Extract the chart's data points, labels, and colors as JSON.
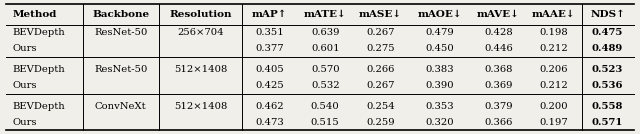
{
  "headers": [
    "Method",
    "Backbone",
    "Resolution",
    "mAP↑",
    "mATE↓",
    "mASE↓",
    "mAOE↓",
    "mAVE↓",
    "mAAE↓",
    "NDS↑"
  ],
  "rows": [
    [
      "BEVDepth",
      "ResNet-50",
      "256×704",
      "0.351",
      "0.639",
      "0.267",
      "0.479",
      "0.428",
      "0.198",
      "0.475"
    ],
    [
      "Ours",
      "",
      "",
      "0.377",
      "0.601",
      "0.275",
      "0.450",
      "0.446",
      "0.212",
      "0.489"
    ],
    [
      "BEVDepth",
      "ResNet-50",
      "512×1408",
      "0.405",
      "0.570",
      "0.266",
      "0.383",
      "0.368",
      "0.206",
      "0.523"
    ],
    [
      "Ours",
      "",
      "",
      "0.425",
      "0.532",
      "0.267",
      "0.390",
      "0.369",
      "0.212",
      "0.536"
    ],
    [
      "BEVDepth",
      "ConvNeXt",
      "512×1408",
      "0.462",
      "0.540",
      "0.254",
      "0.353",
      "0.379",
      "0.200",
      "0.558"
    ],
    [
      "Ours",
      "",
      "",
      "0.473",
      "0.515",
      "0.259",
      "0.320",
      "0.366",
      "0.197",
      "0.571"
    ]
  ],
  "figsize": [
    6.4,
    1.34
  ],
  "dpi": 100,
  "bg_color": "#f0efea",
  "font_size": 7.2,
  "header_font_size": 7.5
}
